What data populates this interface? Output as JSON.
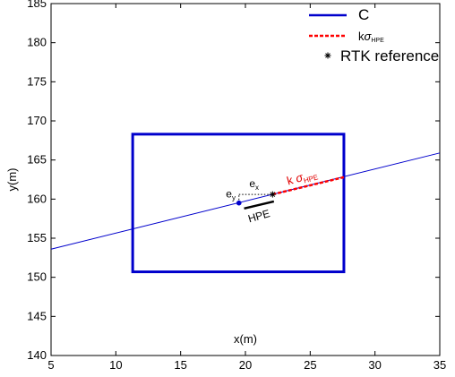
{
  "chart_data": {
    "type": "line",
    "xlabel": "x(m)",
    "ylabel": "y(m)",
    "xlim": [
      5,
      35
    ],
    "ylim": [
      140,
      185
    ],
    "xticks": [
      5,
      10,
      15,
      20,
      25,
      30,
      35
    ],
    "yticks": [
      140,
      145,
      150,
      155,
      160,
      165,
      170,
      175,
      180,
      185
    ],
    "grid": false,
    "legend_position": "top-right",
    "legend": [
      {
        "label": "C",
        "style": "solid",
        "color": "#0000cc"
      },
      {
        "label": "k",
        "label_symbol": "σ",
        "label_sub": "HPE",
        "style": "dashed",
        "color": "#ff0000"
      },
      {
        "label": "RTK reference",
        "style": "marker",
        "marker": "*",
        "color": "#000000"
      }
    ],
    "series": [
      {
        "name": "C",
        "type": "line",
        "color": "#0000cc",
        "x": [
          5,
          35
        ],
        "y": [
          153.6,
          165.9
        ]
      },
      {
        "name": "kσHPE",
        "type": "dashed",
        "color": "#ff0000",
        "x": [
          22.1,
          27.6
        ],
        "y": [
          160.6,
          162.8
        ]
      },
      {
        "name": "RTK reference",
        "type": "marker",
        "color": "#000000",
        "x": [
          22.1
        ],
        "y": [
          160.6
        ]
      }
    ],
    "blue_point": {
      "x": 19.5,
      "y": 159.5,
      "color": "#0000cc"
    },
    "rectangle": {
      "x0": 11.3,
      "x1": 27.6,
      "y0": 150.7,
      "y1": 168.3,
      "color": "#0000cc"
    },
    "hpe_segment": {
      "x": [
        19.9,
        22.2
      ],
      "y": [
        158.8,
        159.7
      ],
      "color": "#000000"
    },
    "ex_segment": {
      "x": [
        19.5,
        22.1
      ],
      "y": [
        160.6,
        160.6
      ]
    },
    "ey_segment": {
      "x": [
        19.5,
        19.5
      ],
      "y": [
        159.5,
        160.6
      ]
    },
    "annotations": {
      "ex": {
        "text": "e",
        "sub": "x",
        "x": 20.3,
        "y": 161.5
      },
      "ey": {
        "text": "e",
        "sub": "y",
        "x": 18.5,
        "y": 160.2
      },
      "hpe": {
        "text": "HPE",
        "x": 20.3,
        "y": 157.0,
        "rotate": -16
      },
      "k_sigma": {
        "text": "k",
        "symbol": "σ",
        "sub": "HPE",
        "x": 23.3,
        "y": 161.8,
        "rotate": -16
      }
    }
  }
}
